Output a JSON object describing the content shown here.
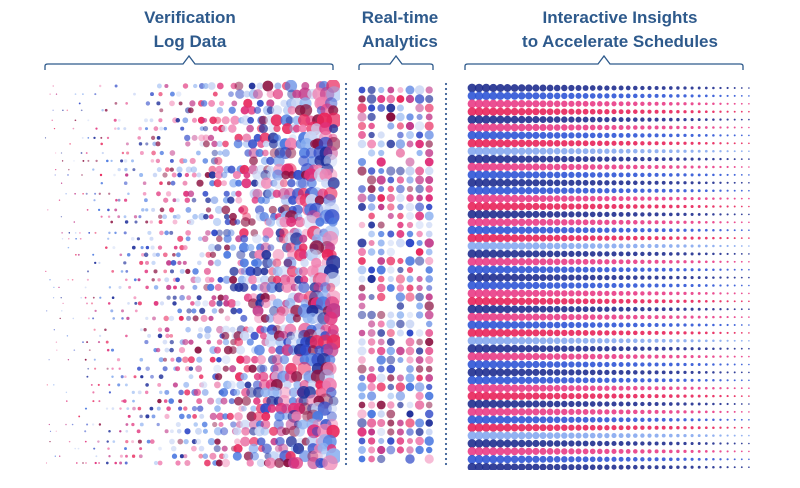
{
  "headings": {
    "verification": {
      "line1": "Verification",
      "line2": "Log Data"
    },
    "analytics": {
      "line1": "Real-time",
      "line2": "Analytics"
    },
    "insights": {
      "line1": "Interactive Insights",
      "line2": "to Accelerate Schedules"
    }
  },
  "colors": {
    "heading": "#2e5a8c",
    "brace": "#2e5a8c",
    "separator": "#3a5f95",
    "palette": [
      "#1f2f9a",
      "#2f49c8",
      "#4a78e0",
      "#8cb0f0",
      "#c9d6f5",
      "#e0307a",
      "#f07fb0",
      "#e8245a",
      "#8b1040",
      "#c23a8a"
    ]
  },
  "stripe_pattern": [
    "navy",
    "blue",
    "pink",
    "red",
    "navy",
    "pink",
    "blue",
    "red",
    "lightblue",
    "navy",
    "pink",
    "blue"
  ]
}
